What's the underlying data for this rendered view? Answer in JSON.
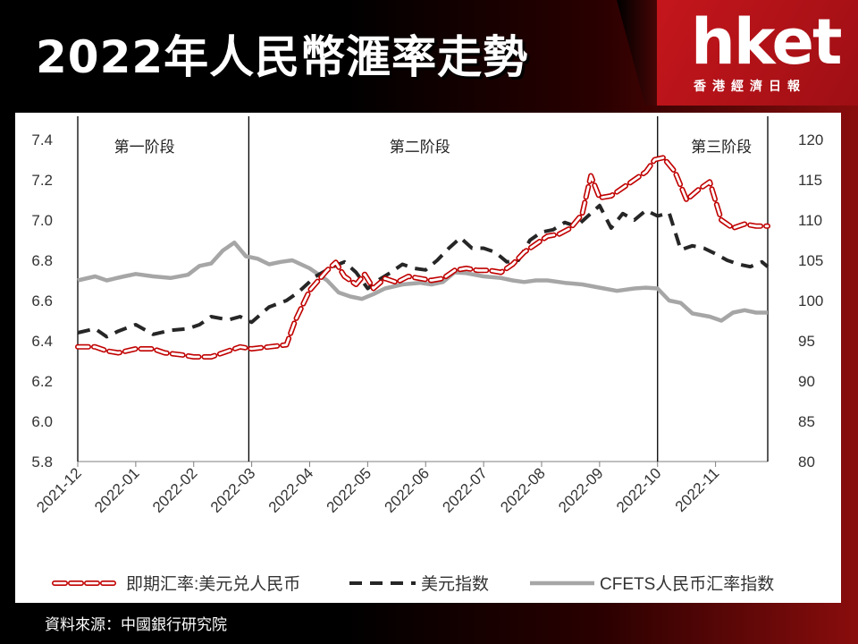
{
  "header": {
    "title": "2022年人民幣滙率走勢",
    "logo": "hket",
    "logo_subtitle": "香港經濟日報"
  },
  "footer": {
    "source": "資料來源：中國銀行研究院"
  },
  "colors": {
    "spot": "#c00000",
    "usd_index": "#262626",
    "cfets": "#a6a6a6",
    "brand_red": "#c4161c"
  },
  "chart_data": {
    "type": "line",
    "title": "",
    "x_tick_labels": [
      "2021-12",
      "2022-01",
      "2022-02",
      "2022-03",
      "2022-04",
      "2022-05",
      "2022-06",
      "2022-07",
      "2022-08",
      "2022-09",
      "2022-10",
      "2022-11"
    ],
    "x_range": [
      0,
      11.9
    ],
    "y_left": {
      "range": [
        5.8,
        7.4
      ],
      "ticks": [
        "5.8",
        "6.0",
        "6.2",
        "6.4",
        "6.6",
        "6.8",
        "7.0",
        "7.2",
        "7.4"
      ]
    },
    "y_right": {
      "range": [
        80,
        120
      ],
      "ticks": [
        "80",
        "85",
        "90",
        "95",
        "100",
        "105",
        "110",
        "115",
        "120"
      ]
    },
    "phases": [
      {
        "label": "第一阶段",
        "label_x": 1.15
      },
      {
        "label": "第二阶段",
        "label_x": 5.9
      },
      {
        "label": "第三阶段",
        "label_x": 11.1
      }
    ],
    "phase_boundaries": [
      0,
      2.95,
      10.0,
      11.9
    ],
    "series": [
      {
        "name": "即期汇率:美元兑人民币",
        "axis": "left",
        "x": [
          0,
          0.3,
          0.5,
          0.7,
          1.0,
          1.3,
          1.5,
          1.8,
          2.0,
          2.3,
          2.6,
          2.8,
          3.0,
          3.3,
          3.6,
          3.75,
          4.0,
          4.3,
          4.45,
          4.6,
          4.8,
          4.95,
          5.1,
          5.3,
          5.5,
          5.7,
          5.9,
          6.1,
          6.3,
          6.5,
          6.7,
          6.9,
          7.1,
          7.3,
          7.5,
          7.7,
          7.9,
          8.1,
          8.3,
          8.5,
          8.7,
          8.85,
          9.0,
          9.2,
          9.4,
          9.6,
          9.8,
          9.95,
          10.1,
          10.3,
          10.5,
          10.7,
          10.9,
          11.1,
          11.3,
          11.5,
          11.7,
          11.9
        ],
        "y": [
          6.37,
          6.37,
          6.35,
          6.34,
          6.36,
          6.36,
          6.34,
          6.33,
          6.32,
          6.32,
          6.35,
          6.37,
          6.36,
          6.37,
          6.38,
          6.5,
          6.65,
          6.75,
          6.79,
          6.72,
          6.68,
          6.73,
          6.66,
          6.71,
          6.69,
          6.72,
          6.71,
          6.7,
          6.71,
          6.75,
          6.76,
          6.75,
          6.75,
          6.74,
          6.78,
          6.84,
          6.88,
          6.92,
          6.93,
          6.96,
          7.03,
          7.22,
          7.11,
          7.12,
          7.16,
          7.2,
          7.24,
          7.3,
          7.31,
          7.24,
          7.1,
          7.15,
          7.19,
          7.0,
          6.96,
          6.98,
          6.97,
          6.97
        ]
      },
      {
        "name": "美元指数",
        "axis": "right",
        "x": [
          0,
          0.3,
          0.5,
          0.7,
          1.0,
          1.3,
          1.6,
          1.9,
          2.1,
          2.3,
          2.6,
          2.8,
          3.0,
          3.3,
          3.6,
          3.8,
          4.1,
          4.4,
          4.6,
          4.8,
          5.0,
          5.2,
          5.4,
          5.6,
          5.8,
          6.0,
          6.2,
          6.4,
          6.6,
          6.8,
          7.0,
          7.2,
          7.4,
          7.6,
          7.8,
          8.0,
          8.2,
          8.4,
          8.6,
          8.8,
          9.0,
          9.2,
          9.4,
          9.6,
          9.8,
          10.0,
          10.2,
          10.4,
          10.6,
          10.8,
          11.0,
          11.2,
          11.4,
          11.6,
          11.8,
          11.9
        ],
        "y": [
          96.0,
          96.5,
          95.5,
          96.2,
          97.0,
          95.8,
          96.3,
          96.5,
          97.0,
          98.0,
          97.6,
          98.0,
          97.3,
          99.2,
          100.0,
          101.0,
          103.0,
          104.2,
          104.8,
          103.5,
          101.5,
          102.6,
          103.5,
          104.5,
          104.0,
          103.8,
          105.0,
          106.5,
          107.8,
          106.5,
          106.5,
          106.0,
          104.8,
          105.0,
          107.5,
          108.5,
          108.8,
          109.7,
          109.2,
          110.5,
          111.8,
          109.0,
          110.8,
          110.0,
          111.2,
          110.5,
          110.9,
          106.3,
          106.8,
          106.5,
          105.8,
          105.0,
          104.5,
          104.2,
          104.8,
          104.2
        ]
      },
      {
        "name": "CFETS人民币汇率指数",
        "axis": "right",
        "x": [
          0,
          0.3,
          0.5,
          0.8,
          1.0,
          1.3,
          1.6,
          1.9,
          2.1,
          2.3,
          2.5,
          2.7,
          2.9,
          3.1,
          3.3,
          3.5,
          3.7,
          4.0,
          4.3,
          4.5,
          4.7,
          4.9,
          5.1,
          5.3,
          5.6,
          5.9,
          6.1,
          6.3,
          6.5,
          6.7,
          7.0,
          7.3,
          7.5,
          7.7,
          7.9,
          8.1,
          8.4,
          8.7,
          9.0,
          9.3,
          9.6,
          9.8,
          10.0,
          10.2,
          10.4,
          10.6,
          10.9,
          11.1,
          11.3,
          11.5,
          11.7,
          11.9
        ],
        "y": [
          102.5,
          103.0,
          102.5,
          103.0,
          103.3,
          103.0,
          102.8,
          103.2,
          104.3,
          104.6,
          106.2,
          107.2,
          105.5,
          105.2,
          104.5,
          104.8,
          105.0,
          104.0,
          102.5,
          101.0,
          100.5,
          100.2,
          100.8,
          101.5,
          102.0,
          102.2,
          102.0,
          102.3,
          103.5,
          103.4,
          103.0,
          102.8,
          102.5,
          102.3,
          102.5,
          102.5,
          102.2,
          102.0,
          101.6,
          101.2,
          101.5,
          101.6,
          101.5,
          100.0,
          99.7,
          98.4,
          98.0,
          97.5,
          98.5,
          98.8,
          98.5,
          98.5
        ]
      }
    ],
    "legend_position": "bottom"
  }
}
